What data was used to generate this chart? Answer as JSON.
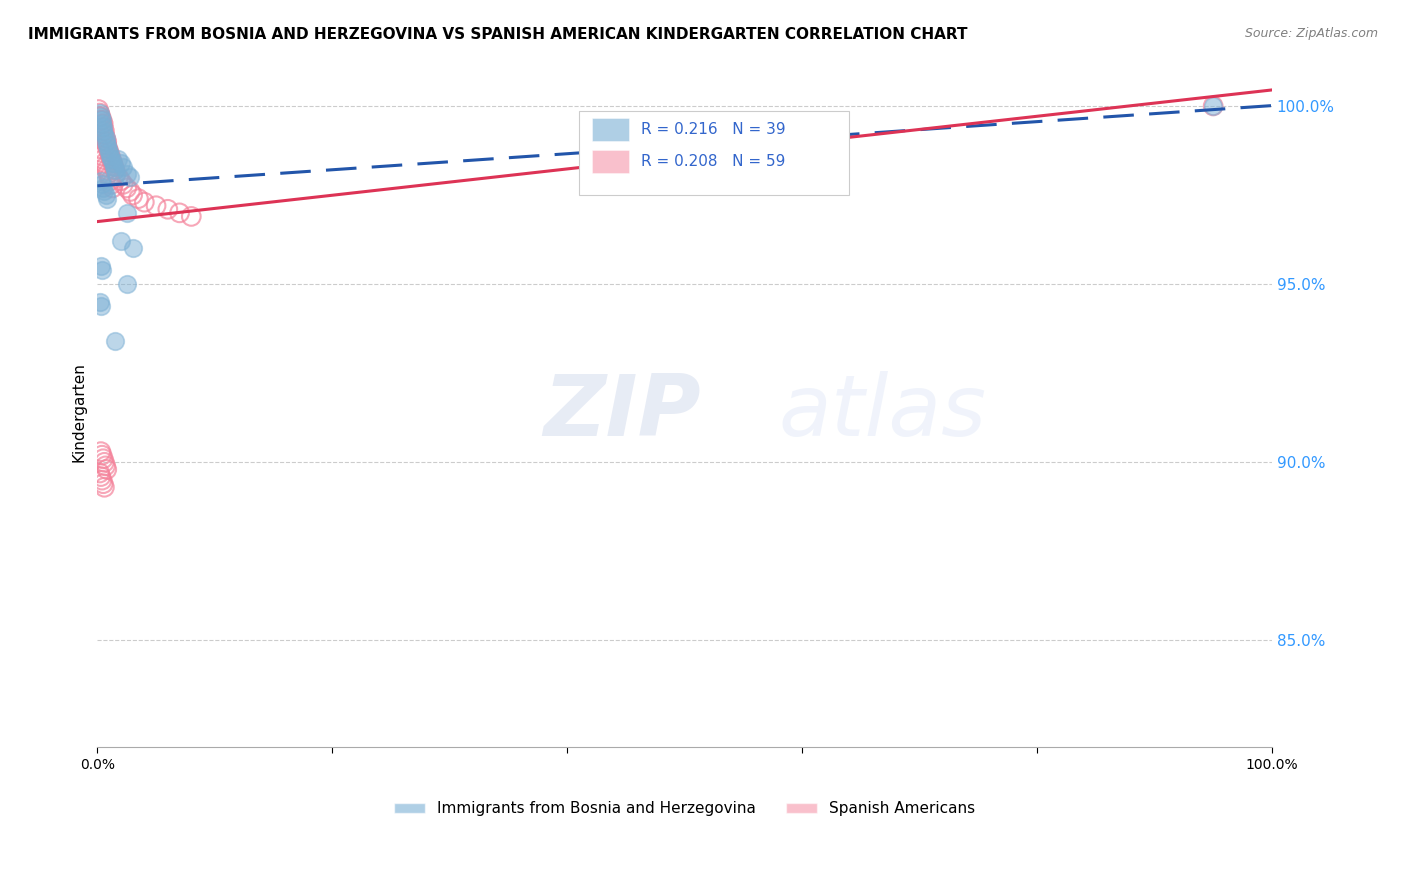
{
  "title": "IMMIGRANTS FROM BOSNIA AND HERZEGOVINA VS SPANISH AMERICAN KINDERGARTEN CORRELATION CHART",
  "source": "Source: ZipAtlas.com",
  "ylabel": "Kindergarten",
  "ytick_labels": [
    "100.0%",
    "95.0%",
    "90.0%",
    "85.0%"
  ],
  "ytick_values": [
    1.0,
    0.95,
    0.9,
    0.85
  ],
  "legend1_label": "Immigrants from Bosnia and Herzegovina",
  "legend2_label": "Spanish Americans",
  "R_blue": 0.216,
  "N_blue": 39,
  "R_pink": 0.208,
  "N_pink": 59,
  "blue_color": "#7BAFD4",
  "pink_color": "#F4829A",
  "line_blue": "#2255AA",
  "line_pink": "#DD3355",
  "watermark_zip": "ZIP",
  "watermark_atlas": "atlas",
  "blue_x": [
    0.002,
    0.003,
    0.004,
    0.004,
    0.005,
    0.005,
    0.006,
    0.007,
    0.007,
    0.008,
    0.009,
    0.01,
    0.011,
    0.012,
    0.013,
    0.014,
    0.015,
    0.016,
    0.018,
    0.02,
    0.022,
    0.025,
    0.028,
    0.003,
    0.004,
    0.005,
    0.006,
    0.007,
    0.008,
    0.003,
    0.004,
    0.002,
    0.003,
    0.015,
    0.02,
    0.025,
    0.95,
    0.025,
    0.03
  ],
  "blue_y": [
    0.998,
    0.997,
    0.996,
    0.995,
    0.994,
    0.993,
    0.992,
    0.991,
    0.99,
    0.989,
    0.988,
    0.987,
    0.986,
    0.985,
    0.984,
    0.983,
    0.982,
    0.981,
    0.985,
    0.984,
    0.983,
    0.981,
    0.98,
    0.979,
    0.978,
    0.977,
    0.976,
    0.975,
    0.974,
    0.955,
    0.954,
    0.945,
    0.944,
    0.934,
    0.962,
    0.95,
    1.0,
    0.97,
    0.96
  ],
  "pink_x": [
    0.001,
    0.002,
    0.002,
    0.003,
    0.003,
    0.004,
    0.004,
    0.005,
    0.005,
    0.006,
    0.006,
    0.007,
    0.007,
    0.008,
    0.008,
    0.009,
    0.01,
    0.011,
    0.012,
    0.013,
    0.014,
    0.015,
    0.016,
    0.018,
    0.02,
    0.022,
    0.025,
    0.028,
    0.03,
    0.035,
    0.04,
    0.05,
    0.06,
    0.07,
    0.08,
    0.002,
    0.003,
    0.004,
    0.005,
    0.006,
    0.007,
    0.008,
    0.009,
    0.01,
    0.011,
    0.012,
    0.013,
    0.95,
    0.003,
    0.004,
    0.005,
    0.006,
    0.007,
    0.008,
    0.002,
    0.003,
    0.004,
    0.005,
    0.006
  ],
  "pink_y": [
    0.999,
    0.998,
    0.997,
    0.997,
    0.996,
    0.996,
    0.995,
    0.995,
    0.994,
    0.993,
    0.992,
    0.991,
    0.99,
    0.99,
    0.989,
    0.988,
    0.987,
    0.986,
    0.985,
    0.984,
    0.983,
    0.982,
    0.981,
    0.98,
    0.979,
    0.978,
    0.977,
    0.976,
    0.975,
    0.974,
    0.973,
    0.972,
    0.971,
    0.97,
    0.969,
    0.988,
    0.987,
    0.986,
    0.985,
    0.984,
    0.983,
    0.982,
    0.981,
    0.98,
    0.979,
    0.978,
    0.977,
    1.0,
    0.903,
    0.902,
    0.901,
    0.9,
    0.899,
    0.898,
    0.897,
    0.896,
    0.895,
    0.894,
    0.893
  ]
}
